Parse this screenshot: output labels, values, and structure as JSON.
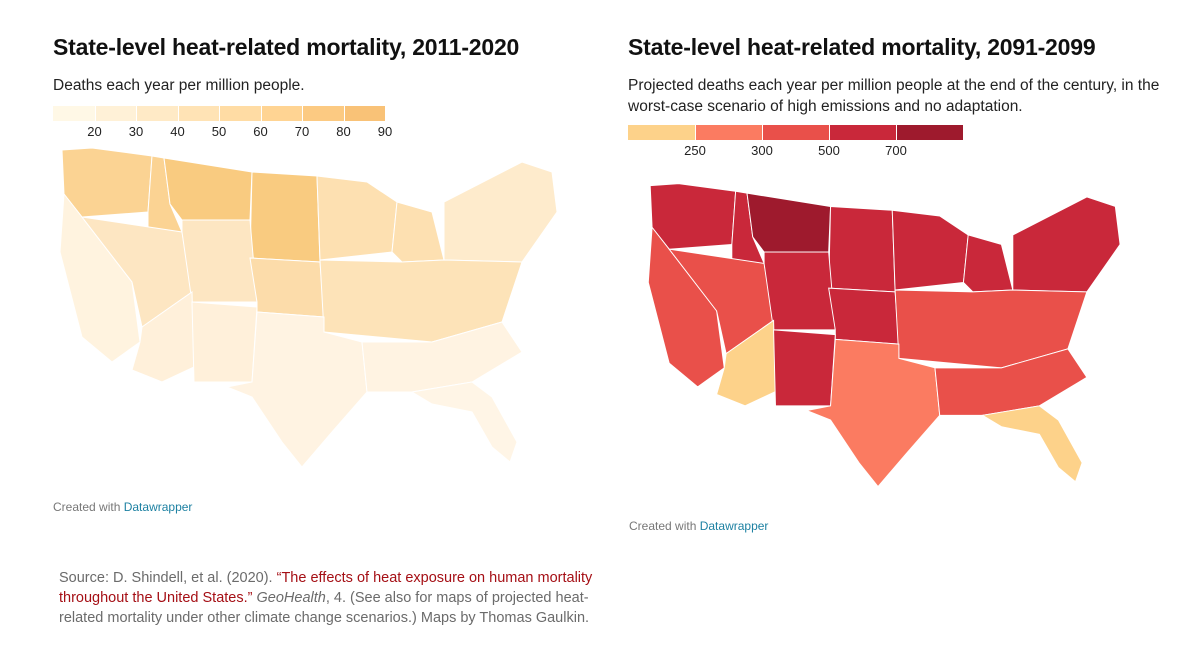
{
  "left_map": {
    "title": "State-level heat-related mortality, 2011-2020",
    "subtitle": "Deaths each year per million people.",
    "legend": {
      "colors": [
        "#fff8e6",
        "#fff1d7",
        "#ffeac6",
        "#ffe3b5",
        "#ffdca4",
        "#ffd493",
        "#fcca82",
        "#f9c277"
      ],
      "ticks": [
        "20",
        "30",
        "40",
        "50",
        "60",
        "70",
        "80",
        "90"
      ]
    },
    "state_fills": {
      "northwest": "#fbd393",
      "northern_plains": "#f9cb80",
      "upper_midwest": "#fde0b1",
      "great_basin": "#fde6c2",
      "central_plains": "#fcdcaa",
      "midwest": "#fde3b8",
      "northeast": "#feebcc",
      "southwest": "#fff0da",
      "south": "#fff3e2",
      "southeast": "#fff5e6",
      "california": "#fff3df"
    },
    "credit_prefix": "Created with",
    "credit_link": "Datawrapper"
  },
  "right_map": {
    "title": "State-level heat-related mortality, 2091-2099",
    "subtitle": "Projected deaths each year per million people at the end of the century, in the worst-case scenario of high emissions and no adaptation.",
    "legend": {
      "colors": [
        "#fdd28a",
        "#fb7b61",
        "#e9504a",
        "#c9283a",
        "#9e1a2d"
      ],
      "ticks": [
        "250",
        "300",
        "500",
        "700"
      ]
    },
    "state_fills": {
      "montana": "#9e1a2d",
      "north": "#c9283a",
      "middle": "#e9504a",
      "south_texas": "#fb7b61",
      "arizona": "#fdd28a",
      "florida": "#fdd28a"
    },
    "credit_prefix": "Created with",
    "credit_link": "Datawrapper"
  },
  "source": {
    "prefix": "Source: D. Shindell, et al. (2020).",
    "article": "“The effects of heat exposure on human mortality throughout the United States.”",
    "journal": "GeoHealth",
    "suffix": ", 4. (See also for maps of projected heat-related mortality under other climate change scenarios.) Maps by Thomas Gaulkin."
  }
}
